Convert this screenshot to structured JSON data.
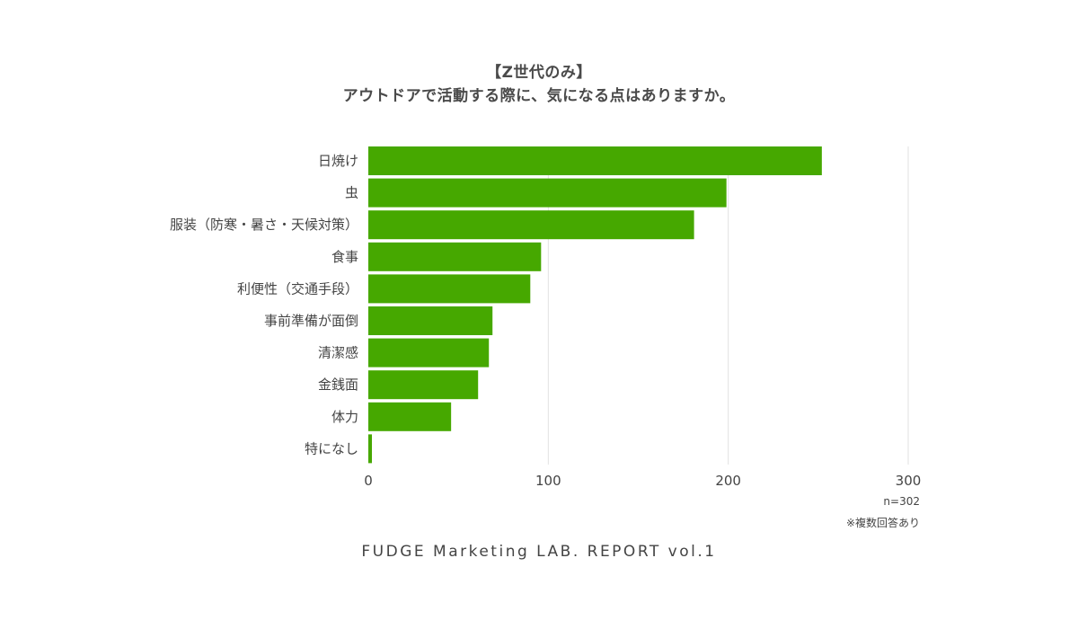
{
  "header": {
    "title_line1": "【Z世代のみ】",
    "title_line2": "アウトドアで活動する際に、気になる点はありますか。"
  },
  "notes": {
    "sample_size": "n=302",
    "multiple_answers": "※複数回答あり"
  },
  "footer": {
    "text": "FUDGE Marketing LAB. REPORT vol.1"
  },
  "colors": {
    "bar": "#46a800",
    "grid": "#e2e2e2",
    "text": "#444444"
  },
  "chart_data": {
    "type": "bar",
    "orientation": "horizontal",
    "categories": [
      "日焼け",
      "虫",
      "服装（防寒・暑さ・天候対策）",
      "食事",
      "利便性（交通手段）",
      "事前準備が面倒",
      "清潔感",
      "金銭面",
      "体力",
      "特になし"
    ],
    "values": [
      252,
      199,
      181,
      96,
      90,
      69,
      67,
      61,
      46,
      2
    ],
    "xlim": [
      0,
      300
    ],
    "xticks": [
      0,
      100,
      200,
      300
    ],
    "xtick_labels": [
      "0",
      "100",
      "200",
      "300"
    ],
    "grid": true,
    "legend": false
  }
}
